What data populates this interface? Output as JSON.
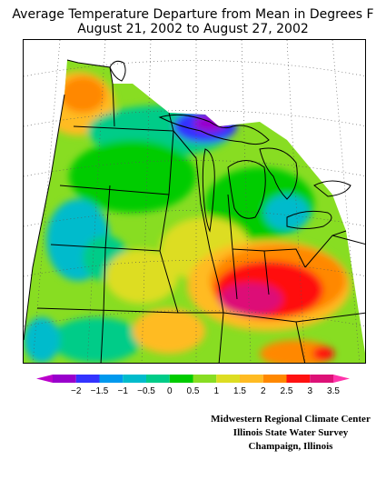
{
  "title_line1": "Average Temperature Departure from Mean in Degrees F",
  "title_line2": "August 21, 2002 to August 27, 2002",
  "legend": {
    "tick_labels": [
      "−2",
      "−1.5",
      "−1",
      "−0.5",
      "0",
      "0.5",
      "1",
      "1.5",
      "2",
      "2.5",
      "3",
      "3.5"
    ],
    "colors": [
      "#9900cc",
      "#3333ff",
      "#0099ee",
      "#00bbcc",
      "#00cc88",
      "#00cc00",
      "#88dd22",
      "#dddd22",
      "#ffbb22",
      "#ff8800",
      "#ff1111",
      "#dd1177"
    ],
    "min_cap_color": "#bb00cc",
    "max_cap_color": "#ff33aa"
  },
  "credits": {
    "line1": "Midwestern Regional Climate Center",
    "line2": "Illinois State Water Survey",
    "line3": "Champaign, Illinois"
  }
}
